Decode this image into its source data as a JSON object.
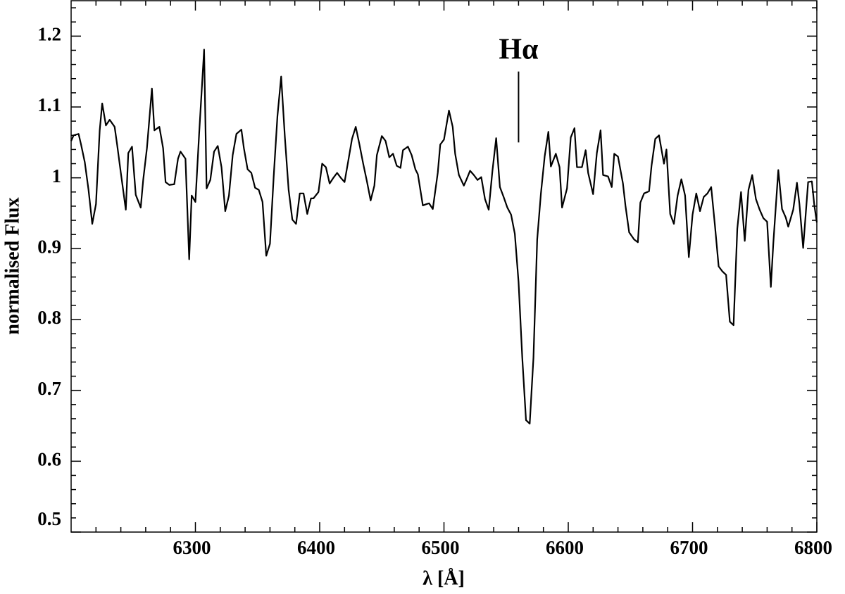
{
  "chart_data": {
    "type": "line",
    "xlabel": "λ [Å]",
    "ylabel": "normalised Flux",
    "color": "#000000",
    "xlim": [
      6200,
      6800
    ],
    "ylim": [
      0.5,
      1.25
    ],
    "xticks": [
      6300,
      6400,
      6500,
      6600,
      6700,
      6800
    ],
    "yticks": [
      0.5,
      0.6,
      0.7,
      0.8,
      0.9,
      1,
      1.1,
      1.2
    ],
    "xminorticks": [
      6220,
      6240,
      6260,
      6280,
      6320,
      6340,
      6360,
      6380,
      6420,
      6440,
      6460,
      6480,
      6520,
      6540,
      6560,
      6580,
      6620,
      6640,
      6660,
      6680,
      6720,
      6740,
      6760,
      6780
    ],
    "yminorticks": [
      0.52,
      0.54,
      0.56,
      0.58,
      0.62,
      0.64,
      0.66,
      0.68,
      0.72,
      0.74,
      0.76,
      0.78,
      0.82,
      0.84,
      0.86,
      0.88,
      0.92,
      0.94,
      0.96,
      0.98,
      1.02,
      1.04,
      1.06,
      1.08,
      1.12,
      1.14,
      1.16,
      1.18,
      1.22,
      1.24
    ],
    "annotation": {
      "text": "Hα",
      "x": 6560,
      "line_from": 1.05,
      "line_to": 1.15
    },
    "x": [
      6200,
      6202,
      6206,
      6208,
      6211,
      6214,
      6217,
      6220,
      6223,
      6225,
      6228,
      6231,
      6235,
      6237,
      6240,
      6244,
      6246,
      6249,
      6252,
      6256,
      6258,
      6261,
      6265,
      6267,
      6271,
      6274,
      6276,
      6279,
      6283,
      6286,
      6288,
      6292,
      6295,
      6297,
      6300,
      6303,
      6307,
      6309,
      6312,
      6315,
      6318,
      6321,
      6324,
      6327,
      6330,
      6333,
      6337,
      6339,
      6342,
      6345,
      6348,
      6351,
      6354,
      6357,
      6360,
      6363,
      6366,
      6369,
      6372,
      6375,
      6378,
      6381,
      6384,
      6387,
      6390,
      6393,
      6395,
      6399,
      6402,
      6405,
      6408,
      6411,
      6414,
      6417,
      6420,
      6423,
      6426,
      6429,
      6432,
      6435,
      6438,
      6441,
      6444,
      6446,
      6450,
      6453,
      6456,
      6459,
      6462,
      6465,
      6467,
      6471,
      6474,
      6477,
      6479,
      6483,
      6486,
      6488,
      6491,
      6495,
      6497,
      6500,
      6504,
      6507,
      6509,
      6512,
      6516,
      6518,
      6521,
      6524,
      6527,
      6530,
      6533,
      6536,
      6539,
      6542,
      6545,
      6548,
      6551,
      6554,
      6557,
      6560,
      6563,
      6566,
      6569,
      6572,
      6575,
      6578,
      6581,
      6584,
      6586,
      6590,
      6593,
      6595,
      6599,
      6602,
      6605,
      6607,
      6611,
      6614,
      6616,
      6620,
      6623,
      6626,
      6628,
      6632,
      6635,
      6637,
      6640,
      6644,
      6646,
      6649,
      6653,
      6656,
      6658,
      6661,
      6665,
      6667,
      6670,
      6673,
      6677,
      6679,
      6682,
      6685,
      6688,
      6691,
      6694,
      6697,
      6700,
      6703,
      6706,
      6709,
      6712,
      6715,
      6718,
      6721,
      6724,
      6727,
      6730,
      6733,
      6736,
      6739,
      6742,
      6745,
      6748,
      6751,
      6754,
      6757,
      6760,
      6763,
      6765,
      6769,
      6772,
      6775,
      6777,
      6781,
      6784,
      6786,
      6789,
      6793,
      6796,
      6798,
      6800
    ],
    "values": [
      1.052,
      1.06,
      1.062,
      1.047,
      1.022,
      0.983,
      0.935,
      0.963,
      1.067,
      1.105,
      1.074,
      1.082,
      1.072,
      1.047,
      1.007,
      0.955,
      1.035,
      1.044,
      0.976,
      0.958,
      0.997,
      1.042,
      1.126,
      1.067,
      1.072,
      1.042,
      0.994,
      0.99,
      0.991,
      1.027,
      1.037,
      1.027,
      0.885,
      0.975,
      0.966,
      1.062,
      1.181,
      0.985,
      0.997,
      1.037,
      1.045,
      1.015,
      0.953,
      0.975,
      1.032,
      1.062,
      1.068,
      1.042,
      1.012,
      1.007,
      0.986,
      0.983,
      0.966,
      0.89,
      0.907,
      1.002,
      1.087,
      1.143,
      1.057,
      0.983,
      0.941,
      0.935,
      0.978,
      0.978,
      0.949,
      0.971,
      0.971,
      0.98,
      1.02,
      1.015,
      0.992,
      1.0,
      1.007,
      1.0,
      0.994,
      1.024,
      1.055,
      1.072,
      1.047,
      1.02,
      0.995,
      0.968,
      0.989,
      1.032,
      1.059,
      1.052,
      1.029,
      1.034,
      1.017,
      1.014,
      1.039,
      1.044,
      1.032,
      1.012,
      1.005,
      0.961,
      0.963,
      0.964,
      0.956,
      1.007,
      1.047,
      1.054,
      1.095,
      1.072,
      1.034,
      1.004,
      0.989,
      0.997,
      1.01,
      1.004,
      0.997,
      1.001,
      0.97,
      0.955,
      1.01,
      1.056,
      0.987,
      0.973,
      0.958,
      0.948,
      0.921,
      0.853,
      0.746,
      0.658,
      0.653,
      0.746,
      0.913,
      0.978,
      1.03,
      1.065,
      1.016,
      1.034,
      1.015,
      0.958,
      0.985,
      1.057,
      1.07,
      1.015,
      1.015,
      1.039,
      1.007,
      0.977,
      1.035,
      1.067,
      1.004,
      1.002,
      0.987,
      1.034,
      1.03,
      0.992,
      0.961,
      0.923,
      0.913,
      0.909,
      0.965,
      0.978,
      0.981,
      1.017,
      1.055,
      1.06,
      1.02,
      1.04,
      0.949,
      0.935,
      0.975,
      0.998,
      0.975,
      0.888,
      0.948,
      0.978,
      0.953,
      0.973,
      0.978,
      0.987,
      0.933,
      0.875,
      0.868,
      0.863,
      0.797,
      0.792,
      0.928,
      0.98,
      0.911,
      0.983,
      1.004,
      0.97,
      0.955,
      0.943,
      0.938,
      0.846,
      0.908,
      1.011,
      0.956,
      0.944,
      0.931,
      0.955,
      0.993,
      0.963,
      0.901,
      0.994,
      0.995,
      0.961,
      0.937
    ]
  }
}
